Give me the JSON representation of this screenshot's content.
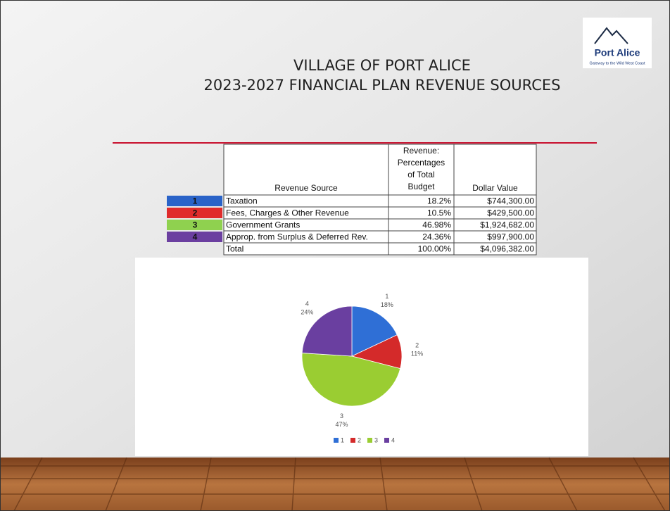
{
  "logo": {
    "name": "Port Alice",
    "tagline": "Gateway to the Wild West Coast"
  },
  "header": {
    "title_line1": "VILLAGE OF PORT ALICE",
    "title_line2": "2023-2027 FINANCIAL PLAN REVENUE SOURCES"
  },
  "table": {
    "header": {
      "source": "Revenue Source",
      "percent": [
        "Revenue:",
        "Percentages",
        "of Total",
        "Budget"
      ],
      "value": "Dollar Value"
    },
    "badge_colors": [
      "#2a63c8",
      "#e02b2b",
      "#8fd14f",
      "#6b3fa0"
    ],
    "rows": [
      [
        "1",
        "Taxation",
        "18.2%",
        "$744,300.00"
      ],
      [
        "2",
        "Fees, Charges & Other Revenue",
        "10.5%",
        "$429,500.00"
      ],
      [
        "3",
        "Government Grants",
        "46.98%",
        "$1,924,682.00"
      ],
      [
        "4",
        "Approp. from Surplus & Deferred Rev.",
        "24.36%",
        "$997,900.00"
      ]
    ],
    "total": [
      "Total",
      "100.00%",
      "$4,096,382.00"
    ]
  },
  "chart_data": {
    "type": "pie",
    "categories": [
      "1",
      "2",
      "3",
      "4"
    ],
    "values": [
      18,
      11,
      47,
      24
    ],
    "value_labels": [
      "18%",
      "11%",
      "47%",
      "24%"
    ],
    "colors": [
      "#2f6fd6",
      "#d42a2a",
      "#9acd32",
      "#6a3fa0"
    ],
    "legend": "bottom"
  }
}
